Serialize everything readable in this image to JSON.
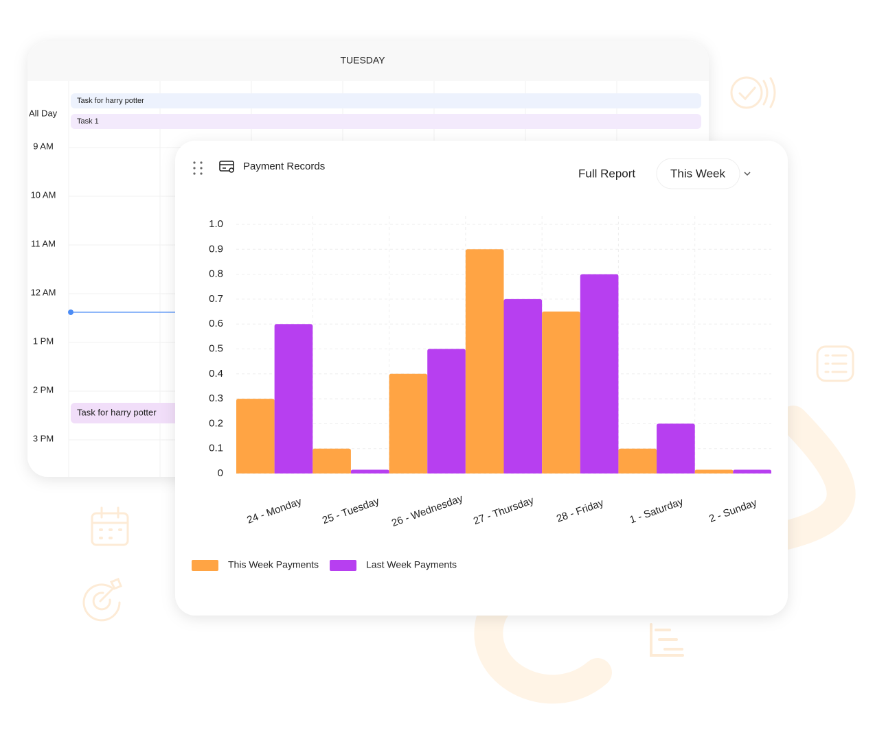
{
  "calendar": {
    "day": "TUESDAY",
    "all_day_label": "All Day",
    "all_day_tasks": [
      "Task for harry potter",
      "Task 1"
    ],
    "times": [
      "9 AM",
      "10 AM",
      "11 AM",
      "12 AM",
      "1 PM",
      "2 PM",
      "3 PM"
    ],
    "event": "Task for harry potter"
  },
  "widget": {
    "title": "Payment Records",
    "full_report": "Full Report",
    "period": "This Week"
  },
  "chart_data": {
    "type": "bar",
    "categories": [
      "24 - Monday",
      "25 - Tuesday",
      "26 - Wednesday",
      "27 - Thursday",
      "28 - Friday",
      "1 - Saturday",
      "2 - Sunday"
    ],
    "series": [
      {
        "name": "This Week Payments",
        "color": "#ffa444",
        "values": [
          0.3,
          0.1,
          0.4,
          0.9,
          0.65,
          0.1,
          0.015
        ]
      },
      {
        "name": "Last Week Payments",
        "color": "#b73ff0",
        "values": [
          0.6,
          0.015,
          0.5,
          0.7,
          0.8,
          0.2,
          0.015
        ]
      }
    ],
    "ylim": [
      0,
      1
    ],
    "yticks": [
      0,
      0.1,
      0.2,
      0.3,
      0.4,
      0.5,
      0.6,
      0.7,
      0.8,
      0.9,
      {
        "value": 1,
        "label": "1.0"
      }
    ],
    "grid": true
  }
}
